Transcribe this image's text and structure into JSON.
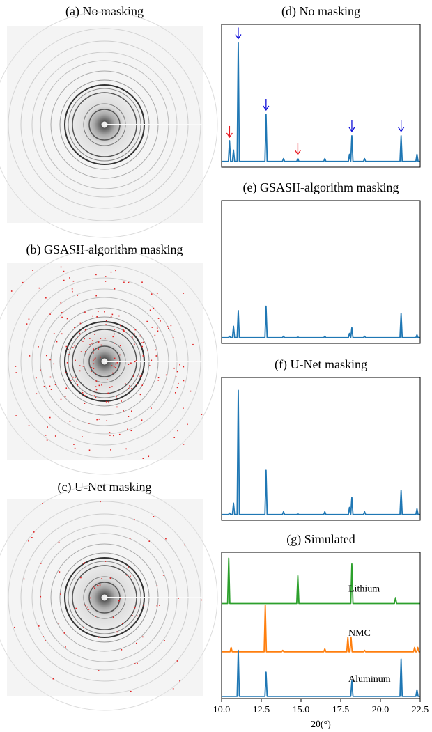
{
  "images": [
    {
      "title": "(a) No masking"
    },
    {
      "title": "(b) GSASII-algorithm masking"
    },
    {
      "title": "(c) U-Net masking"
    }
  ],
  "chart_data": [
    {
      "type": "line",
      "title": "(d) No masking",
      "color": "#1f77b4",
      "xlim": [
        10.0,
        22.5
      ],
      "ylim": [
        0,
        100
      ],
      "x": [
        10.0,
        10.43,
        10.5,
        10.57,
        10.68,
        10.75,
        10.82,
        10.98,
        11.05,
        11.12,
        12.73,
        12.8,
        12.87,
        13.83,
        13.9,
        13.97,
        14.73,
        14.8,
        14.87,
        16.43,
        16.5,
        16.57,
        17.98,
        18.05,
        18.12,
        18.13,
        18.2,
        18.27,
        18.93,
        19.0,
        19.07,
        21.23,
        21.3,
        21.37,
        22.23,
        22.3,
        22.37,
        22.5
      ],
      "values": [
        4,
        4,
        18.5,
        4,
        4,
        12,
        4,
        4,
        87,
        4,
        4,
        37,
        4,
        4,
        6,
        4,
        4,
        6,
        4,
        4,
        6,
        4,
        4,
        9,
        4,
        4,
        22,
        4,
        4,
        6,
        4,
        4,
        22,
        4,
        4,
        9,
        4,
        4
      ],
      "arrows": [
        {
          "x": 10.5,
          "y": 21,
          "color": "#e8171f"
        },
        {
          "x": 11.05,
          "y": 90,
          "color": "#1010d8"
        },
        {
          "x": 12.8,
          "y": 40,
          "color": "#1010d8"
        },
        {
          "x": 14.8,
          "y": 9,
          "color": "#e8171f"
        },
        {
          "x": 18.2,
          "y": 25,
          "color": "#1010d8"
        },
        {
          "x": 21.3,
          "y": 25,
          "color": "#1010d8"
        }
      ]
    },
    {
      "type": "line",
      "title": "(e) GSASII-algorithm masking",
      "color": "#1f77b4",
      "xlim": [
        10.0,
        22.5
      ],
      "ylim": [
        0,
        100
      ],
      "x": [
        10.0,
        10.43,
        10.5,
        10.57,
        10.68,
        10.75,
        10.82,
        10.98,
        11.05,
        11.12,
        12.73,
        12.8,
        12.87,
        13.83,
        13.9,
        13.97,
        14.73,
        14.8,
        14.87,
        16.43,
        16.5,
        16.57,
        17.98,
        18.05,
        18.12,
        18.13,
        18.2,
        18.27,
        18.93,
        19.0,
        19.07,
        21.23,
        21.3,
        21.37,
        22.23,
        22.3,
        22.37,
        22.5
      ],
      "values": [
        4,
        4,
        5,
        4,
        4,
        12,
        4,
        4,
        23,
        4,
        4,
        26,
        4,
        4,
        5,
        4,
        4,
        4.5,
        4,
        4,
        5,
        4,
        4,
        7,
        4,
        4,
        11,
        4,
        4,
        5,
        4,
        4,
        21,
        4,
        4,
        6,
        4,
        4
      ]
    },
    {
      "type": "line",
      "title": "(f) U-Net masking",
      "color": "#1f77b4",
      "xlim": [
        10.0,
        22.5
      ],
      "ylim": [
        0,
        100
      ],
      "x": [
        10.0,
        10.43,
        10.5,
        10.57,
        10.68,
        10.75,
        10.82,
        10.98,
        11.05,
        11.12,
        12.73,
        12.8,
        12.87,
        13.83,
        13.9,
        13.97,
        14.73,
        14.8,
        14.87,
        16.43,
        16.5,
        16.57,
        17.98,
        18.05,
        18.12,
        18.13,
        18.2,
        18.27,
        18.93,
        19.0,
        19.07,
        21.23,
        21.3,
        21.37,
        22.23,
        22.3,
        22.37,
        22.5
      ],
      "values": [
        4,
        4,
        5,
        4,
        4,
        12,
        4,
        4,
        91,
        4,
        4,
        35,
        4,
        4,
        6,
        4,
        4,
        4.5,
        4,
        4,
        6,
        4,
        4,
        9,
        4,
        4,
        16,
        4,
        4,
        6,
        4,
        4,
        21,
        4,
        4,
        8,
        4,
        4
      ]
    },
    {
      "type": "multiline",
      "title": "(g) Simulated",
      "xlabel": "2θ(°)",
      "xlim": [
        10.0,
        22.5
      ],
      "ylim": [
        0,
        100
      ],
      "xticks": [
        {
          "value": 10,
          "label": "10.0"
        },
        12.5,
        {
          "value": 15,
          "label": "15.0"
        },
        17.5,
        {
          "value": 20,
          "label": "20.0"
        },
        22.5
      ],
      "series": [
        {
          "name": "Lithium",
          "color": "#2ca02c",
          "x": [
            10.0,
            10.38,
            10.45,
            10.52,
            14.73,
            14.8,
            14.87,
            18.13,
            18.2,
            18.27,
            20.88,
            20.95,
            21.02,
            22.5
          ],
          "values": [
            65,
            65,
            96,
            65,
            65,
            84,
            65,
            65,
            92,
            65,
            65,
            69,
            65,
            65
          ]
        },
        {
          "name": "NMC",
          "color": "#ff7f0e",
          "x": [
            10.0,
            10.53,
            10.6,
            10.67,
            12.68,
            12.75,
            12.82,
            13.78,
            13.85,
            13.92,
            16.43,
            16.5,
            16.57,
            17.88,
            17.95,
            18.02,
            18.08,
            18.15,
            18.22,
            18.93,
            19.0,
            19.07,
            22.08,
            22.15,
            22.22,
            22.28,
            22.35,
            22.42,
            22.5
          ],
          "values": [
            32,
            32,
            35,
            32,
            32,
            64,
            32,
            32,
            33,
            32,
            32,
            34,
            32,
            32,
            42,
            32,
            32,
            42,
            32,
            32,
            33,
            32,
            32,
            35,
            32,
            32,
            35,
            32,
            32
          ]
        },
        {
          "name": "Aluminum",
          "color": "#1f77b4",
          "x": [
            10.0,
            10.98,
            11.05,
            11.12,
            12.73,
            12.8,
            12.87,
            18.13,
            18.2,
            18.27,
            21.23,
            21.3,
            21.37,
            22.23,
            22.3,
            22.37,
            22.5
          ],
          "values": [
            1.5,
            1.5,
            33,
            1.5,
            1.5,
            18,
            1.5,
            1.5,
            12,
            1.5,
            1.5,
            27,
            1.5,
            1.5,
            6,
            1.5,
            1.5
          ]
        }
      ]
    }
  ]
}
